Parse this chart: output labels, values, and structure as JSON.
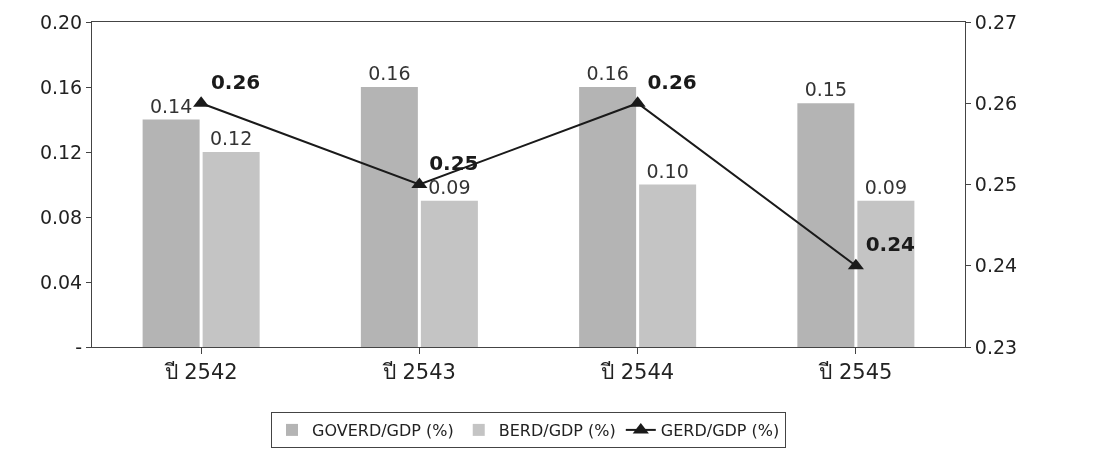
{
  "chart_data": {
    "type": "bar",
    "categories": [
      "ปี 2542",
      "ปี 2543",
      "ปี 2544",
      "ปี 2545"
    ],
    "series": [
      {
        "name": "GOVERD/GDP (%)",
        "color": "#b4b4b4",
        "values": [
          0.14,
          0.16,
          0.16,
          0.15
        ],
        "value_labels": [
          "0.14",
          "0.16",
          "0.16",
          "0.15"
        ]
      },
      {
        "name": "BERD/GDP (%)",
        "color": "#c4c4c4",
        "values": [
          0.12,
          0.09,
          0.1,
          0.09
        ],
        "value_labels": [
          "0.12",
          "0.09",
          "0.10",
          "0.09"
        ]
      },
      {
        "name": "GERD/GDP (%)",
        "type": "line",
        "axis": "y2",
        "color": "#1a1a1a",
        "marker": "triangle",
        "line_style": "solid",
        "values": [
          0.26,
          0.25,
          0.26,
          0.24
        ],
        "value_labels": [
          "0.26",
          "0.25",
          "0.26",
          "0.24"
        ]
      }
    ],
    "ylim": [
      0,
      0.2
    ],
    "yticks": [
      {
        "value": 0,
        "label": "-"
      },
      0.04,
      0.08,
      0.12,
      0.16,
      {
        "value": 0.2,
        "label": "0.20"
      }
    ],
    "y2lim": [
      0.23,
      0.27
    ],
    "y2ticks": [
      0.23,
      0.24,
      0.25,
      0.26,
      0.27
    ],
    "grid": false,
    "legend": "bottom"
  }
}
